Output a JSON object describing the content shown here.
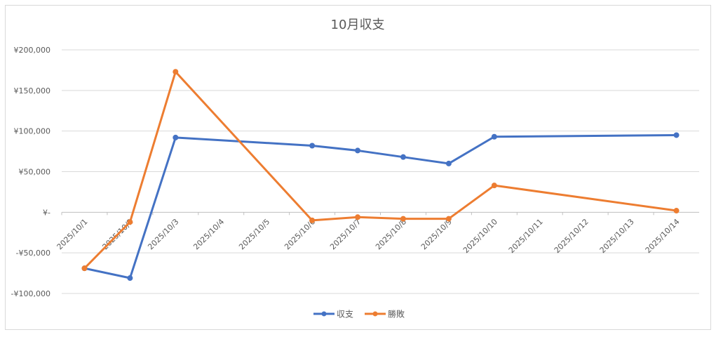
{
  "chart_data": {
    "type": "line",
    "title": "10月収支",
    "categories": [
      "2025/10/1",
      "2025/10/2",
      "2025/10/3",
      "2025/10/4",
      "2025/10/5",
      "2025/10/6",
      "2025/10/7",
      "2025/10/8",
      "2025/10/9",
      "2025/10/10",
      "2025/10/11",
      "2025/10/12",
      "2025/10/13",
      "2025/10/14"
    ],
    "y_ticks": [
      {
        "value": 200000,
        "label": "¥200,000"
      },
      {
        "value": 150000,
        "label": "¥150,000"
      },
      {
        "value": 100000,
        "label": "¥100,000"
      },
      {
        "value": 50000,
        "label": "¥50,000"
      },
      {
        "value": 0,
        "label": "¥-"
      },
      {
        "value": -50000,
        "label": "-¥50,000"
      },
      {
        "value": -100000,
        "label": "-¥100,000"
      }
    ],
    "ylim": [
      -100000,
      200000
    ],
    "grid": true,
    "legend_position": "bottom",
    "series": [
      {
        "name": "収支",
        "color": "#4472c4",
        "values": [
          -69000,
          -81000,
          92000,
          null,
          null,
          82000,
          76000,
          68000,
          60000,
          93000,
          null,
          null,
          null,
          95000
        ]
      },
      {
        "name": "勝敗",
        "color": "#ed7d31",
        "values": [
          -69000,
          -12000,
          173000,
          null,
          null,
          -10000,
          -6000,
          -8000,
          -8000,
          33000,
          null,
          null,
          null,
          2000
        ]
      }
    ]
  }
}
